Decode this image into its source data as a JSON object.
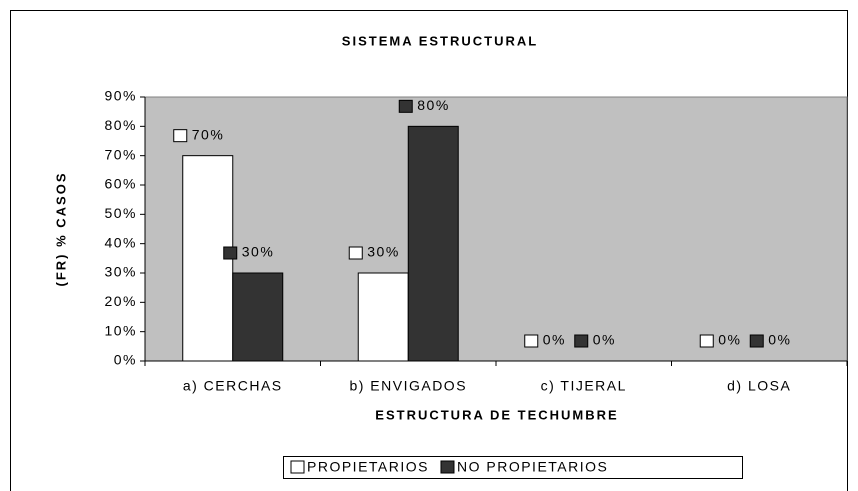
{
  "chart_data": {
    "type": "bar",
    "title": "SISTEMA ESTRUCTURAL",
    "x_label": "ESTRUCTURA DE TECHUMBRE",
    "y_label": "(FR) % CASOS",
    "categories": [
      "a) CERCHAS",
      "b) ENVIGADOS",
      "c) TIJERAL",
      "d) LOSA"
    ],
    "series": [
      {
        "name": "PROPIETARIOS",
        "color": "#ffffff",
        "values": [
          70,
          30,
          0,
          0
        ],
        "value_labels": [
          "70%",
          "30%",
          "0%",
          "0%"
        ]
      },
      {
        "name": "NO PROPIETARIOS",
        "color": "#333333",
        "values": [
          30,
          80,
          0,
          0
        ],
        "value_labels": [
          "30%",
          "80%",
          "0%",
          "0%"
        ]
      }
    ],
    "ylim": [
      0,
      90
    ],
    "yticks": [
      {
        "value": 0,
        "label": "0%"
      },
      {
        "value": 10,
        "label": "10%"
      },
      {
        "value": 20,
        "label": "20%"
      },
      {
        "value": 30,
        "label": "30%"
      },
      {
        "value": 40,
        "label": "40%"
      },
      {
        "value": 50,
        "label": "50%"
      },
      {
        "value": 60,
        "label": "60%"
      },
      {
        "value": 70,
        "label": "70%"
      },
      {
        "value": 80,
        "label": "80%"
      },
      {
        "value": 90,
        "label": "90%"
      }
    ],
    "plot_background": "#c0c0c0",
    "legend": "bottom"
  }
}
